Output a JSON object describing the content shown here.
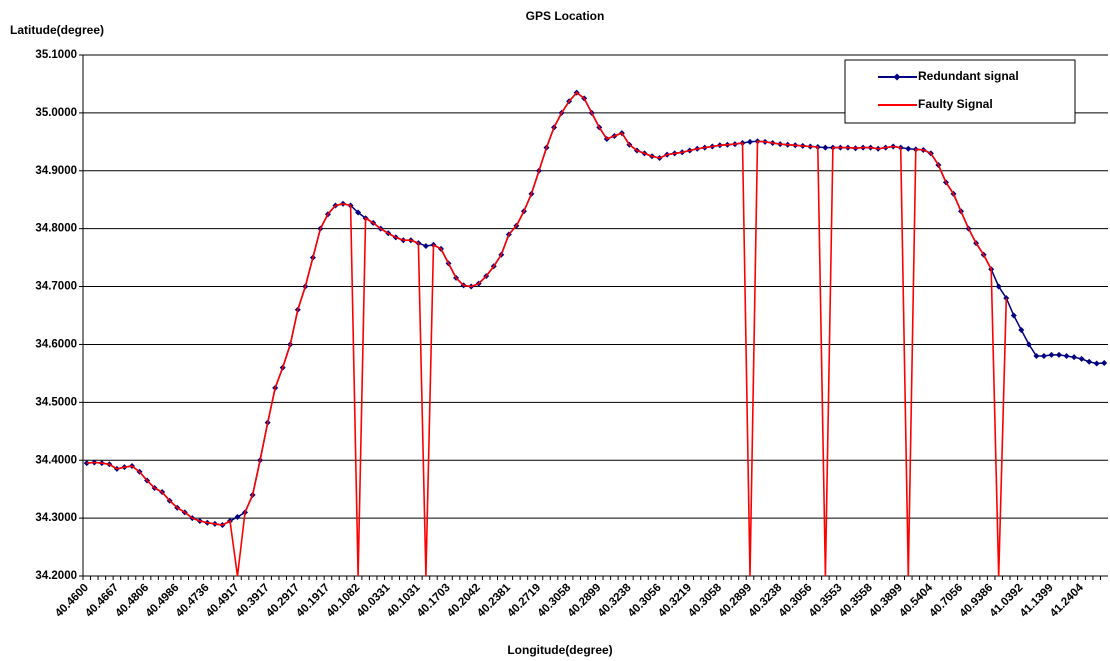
{
  "chart_data": {
    "type": "line",
    "title": "GPS Location",
    "y_label": "Latitude(degree)",
    "x_label": "Longitude(degree)",
    "legend": "top-right",
    "grid": true,
    "ylim": [
      34.2,
      35.1
    ],
    "yticks": [
      {
        "value": 34.2,
        "label": "34.2000"
      },
      {
        "value": 34.3,
        "label": "34.3000"
      },
      {
        "value": 34.4,
        "label": "34.4000"
      },
      {
        "value": 34.5,
        "label": "34.5000"
      },
      {
        "value": 34.6,
        "label": "34.6000"
      },
      {
        "value": 34.7,
        "label": "34.7000"
      },
      {
        "value": 34.8,
        "label": "34.8000"
      },
      {
        "value": 34.9,
        "label": "34.9000"
      },
      {
        "value": 35.0,
        "label": "35.0000"
      },
      {
        "value": 35.1,
        "label": "35.1000"
      }
    ],
    "categories": [
      "40.4600",
      null,
      null,
      null,
      "40.4667",
      null,
      null,
      null,
      "40.4806",
      null,
      null,
      null,
      "40.4986",
      null,
      null,
      null,
      "40.4736",
      null,
      null,
      null,
      "40.4917",
      null,
      null,
      null,
      "40.3917",
      null,
      null,
      null,
      "40.2917",
      null,
      null,
      null,
      "40.1917",
      null,
      null,
      null,
      "40.1082",
      null,
      null,
      null,
      "40.0331",
      null,
      null,
      null,
      "40.1031",
      null,
      null,
      null,
      "40.1703",
      null,
      null,
      null,
      "40.2042",
      null,
      null,
      null,
      "40.2381",
      null,
      null,
      null,
      "40.2719",
      null,
      null,
      null,
      "40.3058",
      null,
      null,
      null,
      "40.2899",
      null,
      null,
      null,
      "40.3238",
      null,
      null,
      null,
      "40.3056",
      null,
      null,
      null,
      "40.3219",
      null,
      null,
      null,
      "40.3058",
      null,
      null,
      null,
      "40.2899",
      null,
      null,
      null,
      "40.3238",
      null,
      null,
      null,
      "40.3056",
      null,
      null,
      null,
      "40.3553",
      null,
      null,
      null,
      "40.3558",
      null,
      null,
      null,
      "40.3899",
      null,
      null,
      null,
      "40.5404",
      null,
      null,
      null,
      "40.7056",
      null,
      null,
      null,
      "40.9386",
      null,
      null,
      null,
      "41.0392",
      null,
      null,
      null,
      "41.1399",
      null,
      null,
      null,
      "41.2404",
      null,
      null,
      null
    ],
    "series": [
      {
        "name": "Redundant signal",
        "color": "#000080",
        "marker": "diamond",
        "values": [
          34.395,
          34.396,
          34.395,
          34.393,
          34.385,
          34.388,
          34.39,
          34.38,
          34.365,
          34.352,
          34.345,
          34.33,
          34.318,
          34.31,
          34.3,
          34.295,
          34.292,
          34.29,
          34.288,
          34.295,
          34.302,
          34.31,
          34.34,
          34.4,
          34.465,
          34.525,
          34.56,
          34.6,
          34.66,
          34.7,
          34.75,
          34.8,
          34.825,
          34.84,
          34.843,
          34.84,
          34.828,
          34.818,
          34.81,
          34.8,
          34.792,
          34.785,
          34.78,
          34.78,
          34.775,
          34.77,
          34.772,
          34.765,
          34.74,
          34.715,
          34.702,
          34.7,
          34.705,
          34.718,
          34.735,
          34.755,
          34.79,
          34.805,
          34.83,
          34.86,
          34.9,
          34.94,
          34.975,
          35.0,
          35.02,
          35.035,
          35.025,
          35.0,
          34.975,
          34.955,
          34.96,
          34.965,
          34.945,
          34.935,
          34.93,
          34.925,
          34.922,
          34.928,
          34.93,
          34.932,
          34.935,
          34.938,
          34.94,
          34.942,
          34.944,
          34.945,
          34.946,
          34.948,
          34.95,
          34.951,
          34.95,
          34.948,
          34.946,
          34.945,
          34.944,
          34.943,
          34.942,
          34.941,
          34.94,
          34.94,
          34.94,
          34.94,
          34.939,
          34.94,
          34.94,
          34.938,
          34.94,
          34.942,
          34.94,
          34.938,
          34.937,
          34.936,
          34.93,
          34.91,
          34.88,
          34.86,
          34.83,
          34.8,
          34.775,
          34.755,
          34.73,
          34.7,
          34.68,
          34.65,
          34.625,
          34.6,
          34.58,
          34.58,
          34.582,
          34.582,
          34.58,
          34.578,
          34.575,
          34.57,
          34.567,
          34.568
        ]
      },
      {
        "name": "Faulty Signal",
        "color": "#ff0000",
        "values": [
          34.395,
          34.396,
          34.395,
          34.393,
          34.385,
          34.388,
          34.39,
          34.38,
          34.365,
          34.352,
          34.345,
          34.33,
          34.318,
          34.31,
          34.3,
          34.295,
          34.292,
          34.29,
          34.288,
          34.295,
          34.2,
          34.31,
          34.34,
          34.4,
          34.465,
          34.525,
          34.56,
          34.6,
          34.66,
          34.7,
          34.75,
          34.8,
          34.825,
          34.84,
          34.843,
          34.84,
          34.2,
          34.818,
          34.81,
          34.8,
          34.792,
          34.785,
          34.78,
          34.78,
          34.775,
          34.2,
          34.772,
          34.765,
          34.74,
          34.715,
          34.702,
          34.7,
          34.705,
          34.718,
          34.735,
          34.755,
          34.79,
          34.805,
          34.83,
          34.86,
          34.9,
          34.94,
          34.975,
          35.0,
          35.02,
          35.035,
          35.025,
          35.0,
          34.975,
          34.955,
          34.96,
          34.965,
          34.945,
          34.935,
          34.93,
          34.925,
          34.922,
          34.928,
          34.93,
          34.932,
          34.935,
          34.938,
          34.94,
          34.942,
          34.944,
          34.945,
          34.946,
          34.948,
          34.2,
          34.951,
          34.95,
          34.948,
          34.946,
          34.945,
          34.944,
          34.943,
          34.942,
          34.941,
          34.2,
          34.94,
          34.94,
          34.94,
          34.939,
          34.94,
          34.94,
          34.938,
          34.94,
          34.942,
          34.94,
          34.2,
          34.937,
          34.936,
          34.93,
          34.91,
          34.88,
          34.86,
          34.83,
          34.8,
          34.775,
          34.755,
          34.73,
          34.2,
          34.68,
          null,
          null,
          null,
          null,
          null,
          null,
          null,
          null,
          null,
          null,
          null,
          null,
          null
        ]
      }
    ]
  }
}
